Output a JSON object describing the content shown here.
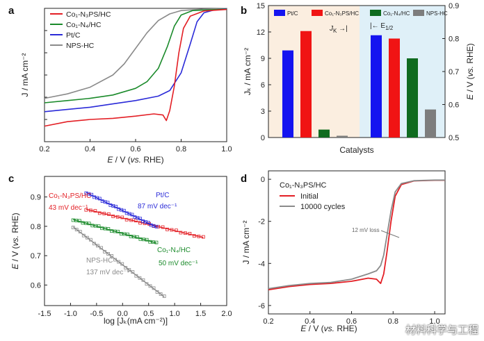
{
  "colors": {
    "red": "#e31e24",
    "green": "#1a8a2a",
    "blue": "#2a2ad8",
    "gray": "#8a8a8a",
    "b_bar_blue": "#1414f0",
    "b_bar_red": "#f01414",
    "b_bar_green": "#0f6b1f",
    "b_bar_gray": "#7d7d7d",
    "b_bg_left": "#fbeee0",
    "b_bg_right": "#dff0f8"
  },
  "watermark": "材料科学与工程",
  "chart_data": [
    {
      "panel": "a",
      "type": "line",
      "xlabel_italic": "E",
      "xlabel_rest": " / V (",
      "xlabel_vs": "vs.",
      "xlabel_end": " RHE)",
      "ylabel": "J / mA cm⁻²",
      "xlim": [
        0.2,
        1.0
      ],
      "ylim": [
        -6,
        0
      ],
      "xticks": [
        "0.2",
        "0.4",
        "0.6",
        "0.8",
        "1.0"
      ],
      "legend": [
        "Co₁-N₃PS/HC",
        "Co₁-N₄/HC",
        "Pt/C",
        "NPS-HC"
      ],
      "series": [
        {
          "name": "Co₁-N₃PS/HC",
          "color": "red",
          "points": [
            [
              0.2,
              -5.3
            ],
            [
              0.3,
              -5.1
            ],
            [
              0.4,
              -5.0
            ],
            [
              0.5,
              -4.95
            ],
            [
              0.6,
              -4.85
            ],
            [
              0.68,
              -4.75
            ],
            [
              0.72,
              -4.8
            ],
            [
              0.735,
              -5.05
            ],
            [
              0.75,
              -4.6
            ],
            [
              0.77,
              -3.5
            ],
            [
              0.79,
              -2.0
            ],
            [
              0.81,
              -0.9
            ],
            [
              0.84,
              -0.35
            ],
            [
              0.9,
              -0.12
            ],
            [
              1.0,
              -0.05
            ]
          ]
        },
        {
          "name": "Co₁-N₄/HC",
          "color": "green",
          "points": [
            [
              0.2,
              -4.25
            ],
            [
              0.3,
              -4.15
            ],
            [
              0.4,
              -4.05
            ],
            [
              0.5,
              -3.9
            ],
            [
              0.6,
              -3.6
            ],
            [
              0.65,
              -3.3
            ],
            [
              0.7,
              -2.7
            ],
            [
              0.74,
              -1.7
            ],
            [
              0.77,
              -0.8
            ],
            [
              0.8,
              -0.3
            ],
            [
              0.85,
              -0.1
            ],
            [
              1.0,
              -0.03
            ]
          ]
        },
        {
          "name": "Pt/C",
          "color": "blue",
          "points": [
            [
              0.2,
              -4.65
            ],
            [
              0.3,
              -4.55
            ],
            [
              0.4,
              -4.45
            ],
            [
              0.5,
              -4.3
            ],
            [
              0.6,
              -4.15
            ],
            [
              0.7,
              -3.95
            ],
            [
              0.75,
              -3.7
            ],
            [
              0.8,
              -2.9
            ],
            [
              0.84,
              -1.6
            ],
            [
              0.87,
              -0.6
            ],
            [
              0.9,
              -0.2
            ],
            [
              0.95,
              -0.06
            ],
            [
              1.0,
              -0.02
            ]
          ]
        },
        {
          "name": "NPS-HC",
          "color": "gray",
          "points": [
            [
              0.2,
              -4.05
            ],
            [
              0.3,
              -3.85
            ],
            [
              0.4,
              -3.55
            ],
            [
              0.5,
              -3.0
            ],
            [
              0.55,
              -2.5
            ],
            [
              0.6,
              -1.8
            ],
            [
              0.65,
              -1.1
            ],
            [
              0.7,
              -0.55
            ],
            [
              0.75,
              -0.25
            ],
            [
              0.8,
              -0.1
            ],
            [
              0.9,
              -0.03
            ],
            [
              1.0,
              -0.01
            ]
          ]
        }
      ]
    },
    {
      "panel": "b",
      "type": "bar",
      "xlabel": "Catalysts",
      "ylabel_left": "Jₖ / mA cm⁻²",
      "ylabel_right_italic": "E",
      "ylabel_right_rest": " / V (",
      "ylabel_right_vs": "vs.",
      "ylabel_right_end": " RHE)",
      "ylim_left": [
        0,
        15
      ],
      "ylim_right": [
        0.5,
        0.9
      ],
      "yticks_left": [
        "0",
        "3",
        "6",
        "9",
        "12",
        "15"
      ],
      "yticks_right": [
        "0.5",
        "0.6",
        "0.7",
        "0.8",
        "0.9"
      ],
      "legend": [
        "Pt/C",
        "Co₁-N₃PS/HC",
        "Co₁-N₄/HC",
        "NPS-HC"
      ],
      "jk_label": "J",
      "jk_sub": "K",
      "jk_arrow": "→|",
      "e12_arrow": "|←",
      "e12_label": "E",
      "e12_sub": "1/2",
      "jk_values": [
        9.9,
        12.1,
        0.9,
        0.2
      ],
      "e12_values": [
        0.81,
        0.8,
        0.74,
        0.585
      ]
    },
    {
      "panel": "c",
      "type": "scatter",
      "xlabel": "log [Jₖ(mA cm⁻²)]",
      "ylabel_italic": "E",
      "ylabel_rest": " / V (",
      "ylabel_vs": "vs.",
      "ylabel_end": " RHE)",
      "xlim": [
        -1.5,
        2.0
      ],
      "ylim": [
        0.53,
        0.97
      ],
      "xticks": [
        "-1.5",
        "-1.0",
        "-0.5",
        "0.0",
        "0.5",
        "1.0",
        "1.5",
        "2.0"
      ],
      "yticks": [
        "0.6",
        "0.7",
        "0.8",
        "0.9"
      ],
      "series": [
        {
          "name": "Co₁-N₃PS/HC",
          "color": "red",
          "slope_label": "43 mV dec⁻¹",
          "x0": -0.7,
          "x1": 1.55,
          "y0": 0.858,
          "y1": 0.762
        },
        {
          "name": "Pt/C",
          "color": "blue",
          "slope_label": "87 mV dec⁻¹",
          "x0": -0.7,
          "x1": 0.65,
          "y0": 0.915,
          "y1": 0.797
        },
        {
          "name": "Co₁-N₄/HC",
          "color": "green",
          "slope_label": "50 mV dec⁻¹",
          "x0": -0.95,
          "x1": 0.65,
          "y0": 0.823,
          "y1": 0.743
        },
        {
          "name": "NPS-HC",
          "color": "gray",
          "slope_label": "137 mV dec⁻¹",
          "x0": -0.95,
          "x1": 0.8,
          "y0": 0.798,
          "y1": 0.56
        }
      ]
    },
    {
      "panel": "d",
      "type": "line",
      "xlabel_italic": "E",
      "xlabel_rest": " / V (",
      "xlabel_vs": "vs.",
      "xlabel_end": " RHE)",
      "ylabel": "J / mA cm⁻²",
      "xlim": [
        0.2,
        1.05
      ],
      "ylim": [
        -6.4,
        0.4
      ],
      "xticks": [
        "0.2",
        "0.4",
        "0.6",
        "0.8",
        "1.0"
      ],
      "yticks": [
        "-6",
        "-4",
        "-2",
        "0"
      ],
      "title": "Co₁-N₃PS/HC",
      "legend": [
        "Initial",
        "10000 cycles"
      ],
      "annotation": "12 mV loss",
      "series": [
        {
          "name": "Initial",
          "color": "red",
          "points": [
            [
              0.2,
              -5.25
            ],
            [
              0.3,
              -5.1
            ],
            [
              0.4,
              -5.0
            ],
            [
              0.5,
              -4.95
            ],
            [
              0.6,
              -4.85
            ],
            [
              0.68,
              -4.7
            ],
            [
              0.72,
              -4.75
            ],
            [
              0.74,
              -4.95
            ],
            [
              0.755,
              -4.5
            ],
            [
              0.77,
              -3.5
            ],
            [
              0.79,
              -2.0
            ],
            [
              0.81,
              -0.8
            ],
            [
              0.84,
              -0.25
            ],
            [
              0.9,
              -0.08
            ],
            [
              1.0,
              -0.05
            ],
            [
              1.05,
              -0.05
            ]
          ]
        },
        {
          "name": "10000 cycles",
          "color": "gray",
          "points": [
            [
              0.2,
              -5.2
            ],
            [
              0.3,
              -5.05
            ],
            [
              0.4,
              -4.95
            ],
            [
              0.5,
              -4.9
            ],
            [
              0.6,
              -4.75
            ],
            [
              0.68,
              -4.5
            ],
            [
              0.72,
              -4.35
            ],
            [
              0.74,
              -4.1
            ],
            [
              0.755,
              -3.6
            ],
            [
              0.77,
              -2.7
            ],
            [
              0.79,
              -1.5
            ],
            [
              0.81,
              -0.6
            ],
            [
              0.84,
              -0.2
            ],
            [
              0.9,
              -0.07
            ],
            [
              1.0,
              -0.04
            ],
            [
              1.05,
              -0.04
            ]
          ]
        }
      ]
    }
  ]
}
